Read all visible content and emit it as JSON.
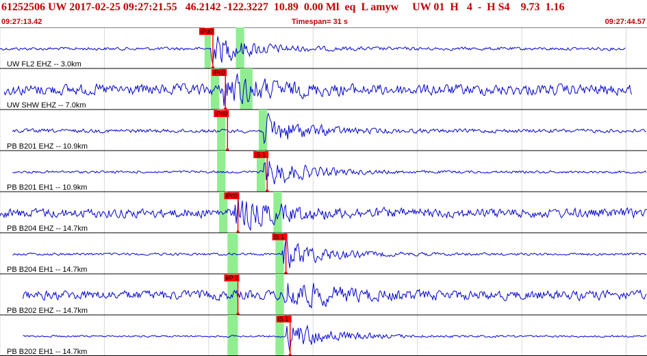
{
  "header": {
    "line": "61252506 UW 2017-02-25 09:27:21.55   46.2142 -122.3227  10.89  0.00 Ml  eq  L amyw     UW 01  H   4  -  H S4    9.73  1.16",
    "start_time": "09:27:13.42",
    "timespan": "Timespan=  31 s",
    "end_time": "09:27:44.57"
  },
  "colors": {
    "trace": "#0000d0",
    "header_text": "#c00000",
    "pick": "#ff0000",
    "window": "#90ee90"
  },
  "chart_data": {
    "type": "line",
    "title": "61252506 UW 2017-02-25 09:27:21.55   46.2142 -122.3227  10.89  0.00 Ml  eq  L amyw     UW 01  H   4  -  H S4    9.73  1.16",
    "xlabel": "",
    "ylabel": "",
    "x_range": [
      "09:27:13.42",
      "09:27:44.57"
    ],
    "timespan_s": 31,
    "traces": [
      {
        "name": "UW FL2 EHZ -- 3.0km",
        "amp": 0.1,
        "start_s": 0.0,
        "end_s": 30.0,
        "pick": {
          "label": "iPd0",
          "time_s": 10.2
        },
        "windows": [
          [
            9.8,
            10.1
          ],
          [
            11.3,
            11.7
          ]
        ],
        "event_s": 10.3
      },
      {
        "name": "UW SHW EHZ -- 7.0km",
        "amp": 0.35,
        "start_s": 0.2,
        "end_s": 30.3,
        "pick": {
          "label": "iPc0",
          "time_s": 10.8
        },
        "windows": [
          [
            10.1,
            10.5
          ],
          [
            11.5,
            12.1
          ]
        ],
        "event_s": 10.8
      },
      {
        "name": "PB B201 EHZ -- 10.9km",
        "amp": 0.12,
        "start_s": 0.6,
        "end_s": 31.0,
        "pick": {
          "label": "iPd0",
          "time_s": 10.9
        },
        "windows": [
          [
            10.4,
            10.8
          ],
          [
            12.4,
            12.8
          ]
        ],
        "event_s": 12.8
      },
      {
        "name": "PB B201 EH1 -- 10.9km",
        "amp": 0.08,
        "start_s": 0.6,
        "end_s": 31.0,
        "pick": {
          "label": "iS 1",
          "time_s": 12.8
        },
        "windows": [
          [
            10.4,
            10.8
          ],
          [
            12.3,
            12.7
          ]
        ],
        "event_s": 12.8
      },
      {
        "name": "PB B204 EHZ -- 14.7km",
        "amp": 0.3,
        "start_s": 0.0,
        "end_s": 31.0,
        "pick": {
          "label": "iPc0",
          "time_s": 11.4
        },
        "windows": [
          [
            10.5,
            10.9
          ],
          [
            13.1,
            13.5
          ]
        ],
        "event_s": 11.4
      },
      {
        "name": "PB B204 EH1 -- 14.7km",
        "amp": 0.08,
        "start_s": 0.6,
        "end_s": 31.0,
        "pick": {
          "label": "iS 1",
          "time_s": 13.7
        },
        "windows": [
          [
            10.9,
            11.4
          ],
          [
            13.2,
            13.6
          ]
        ],
        "event_s": 13.7
      },
      {
        "name": "PB B202 EHZ -- 14.7km",
        "amp": 0.3,
        "start_s": 1.1,
        "end_s": 31.0,
        "pick": {
          "label": "eP 2",
          "time_s": 11.4
        },
        "windows": [
          [
            10.9,
            11.4
          ],
          [
            13.2,
            13.6
          ]
        ],
        "event_s": 13.8
      },
      {
        "name": "PB B202 EH1 -- 14.7km",
        "amp": 0.06,
        "start_s": 1.1,
        "end_s": 31.0,
        "pick": {
          "label": "iS 1",
          "time_s": 13.9
        },
        "windows": [
          [
            10.9,
            11.4
          ],
          [
            13.2,
            13.6
          ]
        ],
        "event_s": 13.9
      }
    ],
    "grid": true,
    "grid_x_s": [
      0,
      5,
      10,
      15,
      20,
      25,
      30
    ]
  }
}
